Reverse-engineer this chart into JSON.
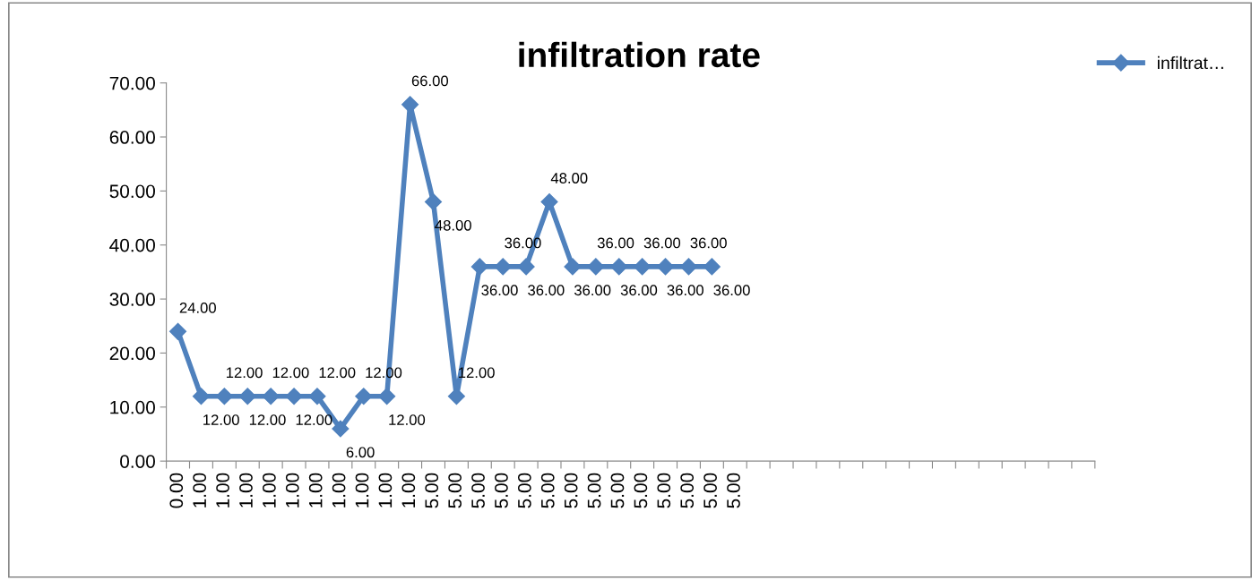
{
  "chart_data": {
    "type": "line",
    "title": "infiltration rate",
    "categories": [
      "0.00",
      "1.00",
      "1.00",
      "1.00",
      "1.00",
      "1.00",
      "1.00",
      "1.00",
      "1.00",
      "1.00",
      "1.00",
      "5.00",
      "5.00",
      "5.00",
      "5.00",
      "5.00",
      "5.00",
      "5.00",
      "5.00",
      "5.00",
      "5.00",
      "5.00",
      "5.00",
      "5.00",
      "5.00",
      null,
      null,
      null,
      null,
      null,
      null,
      null,
      null,
      null,
      null,
      null,
      null,
      null,
      null,
      null
    ],
    "series": [
      {
        "name": "infiltrat…",
        "color": "#4f81bd",
        "values": [
          24,
          12,
          12,
          12,
          12,
          12,
          12,
          6,
          12,
          12,
          66,
          48,
          12,
          36,
          36,
          36,
          48,
          36,
          36,
          36,
          36,
          36,
          36,
          36,
          null,
          null,
          null,
          null,
          null,
          null,
          null,
          null,
          null,
          null,
          null,
          null,
          null,
          null,
          null,
          null
        ],
        "value_labels": [
          "24.00",
          "12.00",
          "12.00",
          "12.00",
          "12.00",
          "12.00",
          "12.00",
          "6.00",
          "12.00",
          "12.00",
          "66.00",
          "48.00",
          "12.00",
          "36.00",
          "36.00",
          "36.00",
          "48.00",
          "36.00",
          "36.00",
          "36.00",
          "36.00",
          "36.00",
          "36.00",
          "36.00",
          null,
          null,
          null,
          null,
          null,
          null,
          null,
          null,
          null,
          null,
          null,
          null,
          null,
          null,
          null,
          null
        ]
      }
    ],
    "ylim": [
      0,
      70
    ],
    "yticks": [
      {
        "value": 0,
        "label": "0.00"
      },
      {
        "value": 10,
        "label": "10.00"
      },
      {
        "value": 20,
        "label": "20.00"
      },
      {
        "value": 30,
        "label": "30.00"
      },
      {
        "value": 40,
        "label": "40.00"
      },
      {
        "value": 50,
        "label": "50.00"
      },
      {
        "value": 60,
        "label": "60.00"
      },
      {
        "value": 70,
        "label": "70.00"
      }
    ],
    "grid": false,
    "legend": "top right",
    "marker": "diamond",
    "line_style": "solid"
  }
}
